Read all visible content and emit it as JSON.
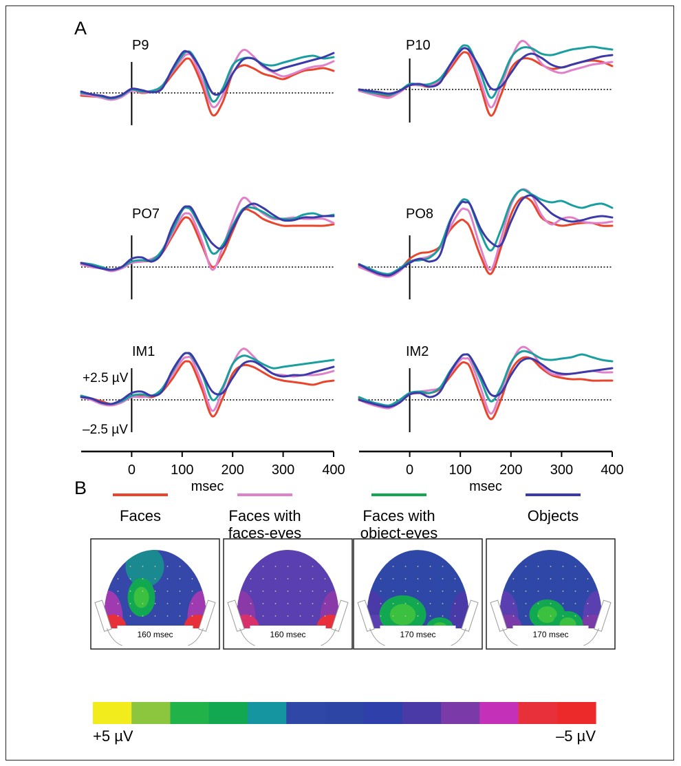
{
  "figure": {
    "panel_a_label": "A",
    "panel_b_label": "B"
  },
  "chart_data": [
    {
      "type": "line",
      "panel": "A",
      "electrode": "P9",
      "x": [
        -100,
        -80,
        -60,
        -40,
        -20,
        0,
        20,
        40,
        60,
        80,
        100,
        110,
        120,
        140,
        160,
        180,
        200,
        220,
        240,
        260,
        280,
        300,
        320,
        340,
        360,
        380,
        400
      ],
      "xlim": [
        -100,
        400
      ],
      "ylim": [
        -2.5,
        3.5
      ],
      "series": [
        {
          "name": "Faces",
          "color": "#e8452c",
          "values": [
            -0.2,
            -0.25,
            -0.3,
            -0.35,
            -0.2,
            0.2,
            0.0,
            0.1,
            0.4,
            1.3,
            2.2,
            2.5,
            2.2,
            0.5,
            -1.6,
            -0.7,
            1.4,
            2.0,
            1.8,
            1.4,
            1.2,
            1.0,
            1.3,
            1.6,
            1.7,
            1.8,
            1.6
          ]
        },
        {
          "name": "Faces with faces-eyes",
          "color": "#e080c8",
          "values": [
            -0.1,
            -0.2,
            -0.35,
            -0.5,
            -0.3,
            0.15,
            0.05,
            0.1,
            0.5,
            1.5,
            2.5,
            2.8,
            2.6,
            0.9,
            -1.0,
            -0.2,
            1.9,
            3.1,
            2.7,
            1.9,
            1.5,
            1.2,
            1.4,
            1.7,
            1.9,
            2.0,
            2.3
          ]
        },
        {
          "name": "Faces with object-eyes",
          "color": "#1a9e9e",
          "values": [
            0.0,
            -0.1,
            -0.25,
            -0.4,
            -0.2,
            0.25,
            0.1,
            0.15,
            0.5,
            1.6,
            2.7,
            3.0,
            2.8,
            1.4,
            -0.6,
            0.3,
            2.0,
            2.5,
            2.5,
            2.1,
            2.0,
            2.2,
            2.4,
            2.6,
            2.7,
            2.5,
            2.6
          ]
        },
        {
          "name": "Objects",
          "color": "#3a3aa8",
          "values": [
            0.1,
            -0.1,
            -0.2,
            -0.35,
            -0.15,
            0.3,
            0.2,
            0.05,
            0.3,
            1.7,
            2.9,
            3.0,
            2.7,
            1.5,
            0.0,
            0.1,
            1.4,
            2.4,
            2.5,
            2.0,
            1.6,
            1.8,
            2.0,
            2.2,
            2.4,
            2.6,
            2.9
          ]
        }
      ]
    },
    {
      "type": "line",
      "panel": "A",
      "electrode": "P10",
      "x": [
        -100,
        -80,
        -60,
        -40,
        -20,
        0,
        20,
        40,
        60,
        80,
        100,
        110,
        120,
        140,
        160,
        180,
        200,
        220,
        240,
        260,
        280,
        300,
        320,
        340,
        360,
        380,
        400
      ],
      "xlim": [
        -100,
        400
      ],
      "ylim": [
        -2.5,
        3.5
      ],
      "series": [
        {
          "name": "Faces",
          "color": "#e8452c",
          "values": [
            -0.1,
            -0.2,
            -0.4,
            -0.5,
            -0.2,
            0.3,
            0.3,
            0.2,
            0.6,
            1.5,
            2.5,
            2.7,
            2.3,
            0.2,
            -1.9,
            -0.4,
            1.5,
            2.2,
            2.2,
            1.8,
            1.5,
            1.6,
            1.8,
            2.0,
            2.1,
            2.0,
            1.7
          ]
        },
        {
          "name": "Faces with faces-eyes",
          "color": "#e080c8",
          "values": [
            -0.1,
            -0.3,
            -0.5,
            -0.6,
            -0.2,
            0.3,
            0.3,
            0.3,
            0.7,
            1.7,
            2.8,
            3.0,
            2.6,
            0.6,
            -1.3,
            0.2,
            2.2,
            3.5,
            3.0,
            1.9,
            1.4,
            1.2,
            1.4,
            1.6,
            1.8,
            1.9,
            2.0
          ]
        },
        {
          "name": "Faces with object-eyes",
          "color": "#1a9e9e",
          "values": [
            0.0,
            -0.2,
            -0.3,
            -0.4,
            -0.1,
            0.4,
            0.35,
            0.4,
            0.8,
            1.8,
            3.0,
            3.2,
            2.9,
            1.2,
            -0.6,
            0.6,
            2.3,
            3.0,
            3.0,
            2.6,
            2.5,
            2.7,
            2.9,
            3.0,
            3.1,
            3.0,
            2.9
          ]
        },
        {
          "name": "Objects",
          "color": "#3a3aa8",
          "values": [
            0.0,
            -0.1,
            -0.2,
            -0.3,
            -0.1,
            0.3,
            0.4,
            0.2,
            0.5,
            1.8,
            2.8,
            3.0,
            2.7,
            1.5,
            0.1,
            0.2,
            1.2,
            2.2,
            2.6,
            2.3,
            1.8,
            1.6,
            1.8,
            2.0,
            2.2,
            2.4,
            2.5
          ]
        }
      ]
    },
    {
      "type": "line",
      "panel": "A",
      "electrode": "PO7",
      "x": [
        -100,
        -80,
        -60,
        -40,
        -20,
        0,
        20,
        40,
        60,
        80,
        100,
        110,
        120,
        140,
        160,
        180,
        200,
        220,
        240,
        260,
        280,
        300,
        320,
        340,
        360,
        380,
        400
      ],
      "xlim": [
        -100,
        400
      ],
      "ylim": [
        -2.5,
        5.5
      ],
      "series": [
        {
          "name": "Faces",
          "color": "#e8452c",
          "values": [
            0.2,
            0.1,
            0.0,
            -0.2,
            0.0,
            0.3,
            0.4,
            0.5,
            1.0,
            2.2,
            3.4,
            3.6,
            3.2,
            1.5,
            0.0,
            0.9,
            2.6,
            4.1,
            4.0,
            3.5,
            3.2,
            3.0,
            3.0,
            3.0,
            3.0,
            3.0,
            3.1
          ]
        },
        {
          "name": "Faces with faces-eyes",
          "color": "#e080c8",
          "values": [
            0.2,
            0.0,
            -0.1,
            -0.3,
            -0.1,
            0.3,
            0.4,
            0.6,
            1.1,
            2.4,
            3.7,
            3.9,
            3.6,
            1.8,
            -0.2,
            1.4,
            3.4,
            5.0,
            4.5,
            3.9,
            3.5,
            3.5,
            3.6,
            3.5,
            3.5,
            3.5,
            3.2
          ]
        },
        {
          "name": "Faces with object-eyes",
          "color": "#1a9e9e",
          "values": [
            0.3,
            0.2,
            0.0,
            -0.2,
            0.0,
            0.4,
            0.5,
            0.5,
            1.2,
            2.6,
            4.1,
            4.3,
            4.0,
            2.6,
            1.0,
            1.6,
            3.0,
            4.2,
            4.3,
            4.0,
            3.6,
            3.5,
            3.5,
            3.8,
            3.9,
            3.7,
            3.8
          ]
        },
        {
          "name": "Objects",
          "color": "#3a3aa8",
          "values": [
            0.3,
            0.1,
            -0.1,
            -0.2,
            0.0,
            0.6,
            0.7,
            0.4,
            1.0,
            2.9,
            4.2,
            4.4,
            4.2,
            2.8,
            1.7,
            1.4,
            2.8,
            4.1,
            4.6,
            4.3,
            3.8,
            3.4,
            3.4,
            3.6,
            3.6,
            3.7,
            3.7
          ]
        }
      ]
    },
    {
      "type": "line",
      "panel": "A",
      "electrode": "PO8",
      "x": [
        -100,
        -80,
        -60,
        -40,
        -20,
        0,
        20,
        40,
        60,
        80,
        100,
        110,
        120,
        140,
        160,
        180,
        200,
        220,
        240,
        260,
        280,
        300,
        320,
        340,
        360,
        380,
        400
      ],
      "xlim": [
        -100,
        400
      ],
      "ylim": [
        -2.5,
        6.5
      ],
      "series": [
        {
          "name": "Faces",
          "color": "#e8452c",
          "values": [
            0.1,
            -0.2,
            -0.5,
            -0.6,
            -0.2,
            0.6,
            1.0,
            1.1,
            1.5,
            2.7,
            3.4,
            3.3,
            2.8,
            0.8,
            -0.5,
            1.4,
            3.8,
            5.0,
            4.8,
            3.6,
            3.2,
            3.0,
            3.1,
            3.2,
            3.2,
            3.0,
            3.0
          ]
        },
        {
          "name": "Faces with faces-eyes",
          "color": "#e080c8",
          "values": [
            0.0,
            -0.3,
            -0.6,
            -0.7,
            -0.3,
            0.4,
            0.6,
            0.8,
            1.4,
            2.9,
            4.1,
            4.2,
            3.8,
            1.4,
            -0.2,
            2.0,
            4.5,
            5.6,
            5.3,
            3.8,
            3.1,
            3.5,
            3.6,
            3.3,
            3.2,
            3.2,
            3.3
          ]
        },
        {
          "name": "Faces with object-eyes",
          "color": "#1a9e9e",
          "values": [
            0.2,
            -0.1,
            -0.4,
            -0.5,
            -0.1,
            0.4,
            0.5,
            0.7,
            1.5,
            3.4,
            4.7,
            4.9,
            4.5,
            2.5,
            1.2,
            2.7,
            4.7,
            5.6,
            5.3,
            4.9,
            4.7,
            4.8,
            4.5,
            4.3,
            4.5,
            4.6,
            4.3
          ]
        },
        {
          "name": "Objects",
          "color": "#3a3aa8",
          "values": [
            0.2,
            -0.2,
            -0.5,
            -0.6,
            -0.2,
            0.3,
            0.6,
            0.4,
            0.9,
            3.3,
            4.6,
            4.7,
            4.5,
            2.8,
            1.8,
            1.6,
            3.3,
            4.8,
            5.2,
            4.6,
            3.9,
            3.5,
            3.3,
            3.4,
            3.6,
            3.7,
            3.6
          ]
        }
      ]
    },
    {
      "type": "line",
      "panel": "A",
      "electrode": "IM1",
      "x": [
        -100,
        -80,
        -60,
        -40,
        -20,
        0,
        20,
        40,
        60,
        80,
        100,
        110,
        120,
        140,
        160,
        180,
        200,
        220,
        240,
        260,
        280,
        300,
        320,
        340,
        360,
        380,
        400
      ],
      "xlim": [
        -100,
        400
      ],
      "ylim": [
        -2.5,
        3.5
      ],
      "series": [
        {
          "name": "Faces",
          "color": "#e8452c",
          "values": [
            0.3,
            0.1,
            -0.1,
            -0.3,
            -0.1,
            0.3,
            0.3,
            0.2,
            0.6,
            1.5,
            2.6,
            2.8,
            2.5,
            0.7,
            -1.2,
            0.1,
            1.9,
            2.5,
            2.4,
            2.0,
            1.6,
            1.4,
            1.3,
            1.2,
            1.1,
            1.3,
            1.4
          ]
        },
        {
          "name": "Faces with faces-eyes",
          "color": "#e080c8",
          "values": [
            0.2,
            0.0,
            -0.3,
            -0.4,
            -0.2,
            0.2,
            0.2,
            0.3,
            0.7,
            1.8,
            2.9,
            3.1,
            2.9,
            1.1,
            -0.8,
            0.7,
            2.6,
            3.7,
            3.2,
            2.4,
            1.9,
            1.8,
            1.7,
            1.8,
            1.8,
            1.9,
            2.1
          ]
        },
        {
          "name": "Faces with object-eyes",
          "color": "#1a9e9e",
          "values": [
            0.3,
            0.1,
            -0.2,
            -0.3,
            -0.1,
            0.3,
            0.4,
            0.3,
            0.8,
            2.0,
            3.2,
            3.4,
            3.1,
            1.8,
            0.0,
            0.9,
            2.6,
            3.2,
            3.0,
            2.6,
            2.3,
            2.4,
            2.5,
            2.6,
            2.7,
            2.8,
            2.9
          ]
        },
        {
          "name": "Objects",
          "color": "#3a3aa8",
          "values": [
            0.2,
            0.1,
            -0.2,
            -0.3,
            0.0,
            0.5,
            0.6,
            0.3,
            0.6,
            2.1,
            3.2,
            3.4,
            3.2,
            1.9,
            0.6,
            0.5,
            1.6,
            2.6,
            2.8,
            2.4,
            1.9,
            1.7,
            1.8,
            1.8,
            2.0,
            2.2,
            2.4
          ]
        }
      ]
    },
    {
      "type": "line",
      "panel": "A",
      "electrode": "IM2",
      "x": [
        -100,
        -80,
        -60,
        -40,
        -20,
        0,
        20,
        40,
        60,
        80,
        100,
        110,
        120,
        140,
        160,
        180,
        200,
        220,
        240,
        260,
        280,
        300,
        320,
        340,
        360,
        380,
        400
      ],
      "xlim": [
        -100,
        400
      ],
      "ylim": [
        -2.5,
        3.5
      ],
      "series": [
        {
          "name": "Faces",
          "color": "#e8452c",
          "values": [
            0.1,
            -0.2,
            -0.4,
            -0.5,
            -0.1,
            0.4,
            0.5,
            0.5,
            0.8,
            1.7,
            2.6,
            2.7,
            2.3,
            0.3,
            -1.4,
            0.0,
            2.1,
            3.0,
            3.0,
            2.3,
            1.8,
            1.6,
            1.5,
            1.5,
            1.4,
            1.4,
            1.4
          ]
        },
        {
          "name": "Faces with faces-eyes",
          "color": "#e080c8",
          "values": [
            0.0,
            -0.3,
            -0.5,
            -0.6,
            -0.2,
            0.4,
            0.6,
            0.7,
            0.9,
            1.9,
            2.9,
            3.0,
            2.8,
            0.9,
            -1.0,
            0.6,
            2.6,
            3.8,
            3.5,
            2.5,
            1.9,
            1.8,
            1.9,
            2.0,
            2.1,
            2.0,
            2.0
          ]
        },
        {
          "name": "Faces with object-eyes",
          "color": "#1a9e9e",
          "values": [
            0.2,
            -0.1,
            -0.3,
            -0.4,
            0.0,
            0.5,
            0.6,
            0.5,
            0.9,
            2.1,
            3.1,
            3.3,
            3.1,
            1.5,
            -0.1,
            0.9,
            2.7,
            3.5,
            3.4,
            3.0,
            2.9,
            3.0,
            3.1,
            3.3,
            3.1,
            2.9,
            2.8
          ]
        },
        {
          "name": "Objects",
          "color": "#3a3aa8",
          "values": [
            0.0,
            -0.2,
            -0.4,
            -0.5,
            -0.2,
            0.4,
            0.5,
            0.2,
            0.6,
            2.0,
            3.1,
            3.3,
            3.1,
            1.8,
            0.4,
            0.5,
            1.8,
            2.8,
            3.0,
            2.6,
            2.1,
            1.9,
            1.9,
            2.0,
            2.1,
            2.2,
            2.3
          ]
        }
      ]
    },
    {
      "type": "heatmap",
      "panel": "B",
      "maps": [
        {
          "condition": "Faces",
          "time_label": "160 msec"
        },
        {
          "condition": "Faces with faces-eyes",
          "time_label": "160 msec"
        },
        {
          "condition": "Faces with object-eyes",
          "time_label": "170 msec"
        },
        {
          "condition": "Objects",
          "time_label": "170 msec"
        }
      ],
      "colorbar": {
        "min_label": "+5 µV",
        "max_label": "–5 µV",
        "colors": [
          "#f2ec1c",
          "#8cc63f",
          "#22b24a",
          "#12a852",
          "#1595a0",
          "#2f48a8",
          "#2d45a5",
          "#3040aa",
          "#4a3aa8",
          "#7a3aa8",
          "#c430b8",
          "#e8303a",
          "#ec2a2a"
        ]
      }
    }
  ],
  "axes": {
    "left": {
      "ticks": [
        "0",
        "100",
        "200",
        "300",
        "400"
      ],
      "xlabel": "msec"
    },
    "right": {
      "ticks": [
        "0",
        "100",
        "200",
        "300",
        "400"
      ],
      "xlabel": "msec"
    },
    "scale_plus": "+2.5 µV",
    "scale_minus": "–2.5 µV"
  },
  "legend": [
    {
      "label_lines": [
        "Faces"
      ],
      "color": "#e8452c"
    },
    {
      "label_lines": [
        "Faces with",
        "faces-eyes"
      ],
      "color": "#e080c8"
    },
    {
      "label_lines": [
        "Faces with",
        "object-eyes"
      ],
      "color": "#12a852"
    },
    {
      "label_lines": [
        "Objects"
      ],
      "color": "#3a3aa8"
    }
  ]
}
